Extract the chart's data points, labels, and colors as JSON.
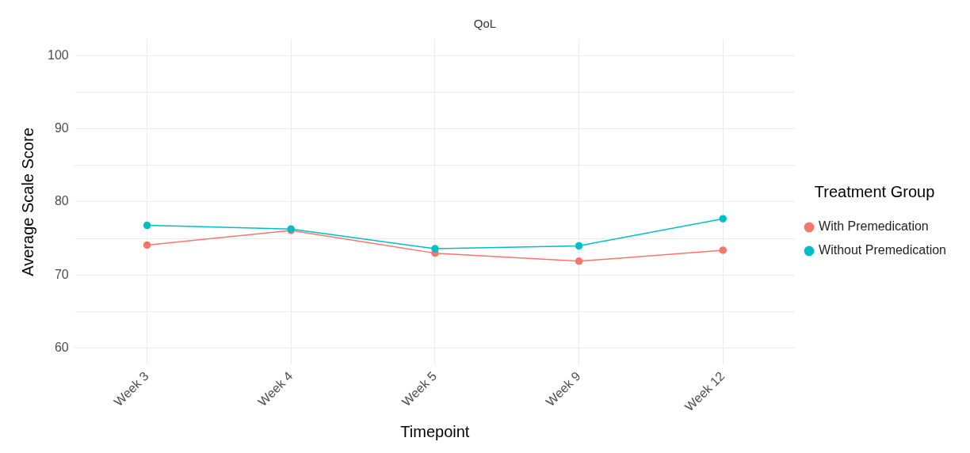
{
  "chart_data": {
    "type": "line",
    "title": "QoL",
    "xlabel": "Timepoint",
    "ylabel": "Average Scale Score",
    "legend_title": "Treatment Group",
    "categories": [
      "Week 3",
      "Week 4",
      "Week 5",
      "Week 9",
      "Week 12"
    ],
    "series": [
      {
        "name": "With Premedication",
        "color": "#f8766d",
        "values": [
          74.1,
          76.1,
          73.0,
          71.9,
          73.4
        ]
      },
      {
        "name": "Without Premedication",
        "color": "#00bfc4",
        "values": [
          76.8,
          76.3,
          73.6,
          74.0,
          77.7
        ]
      }
    ],
    "ylim": [
      57.8,
      102.2
    ],
    "yticks": [
      60,
      {
        "value": 65,
        "label": null
      },
      70,
      {
        "value": 75,
        "label": null
      },
      80,
      {
        "value": 85,
        "label": null
      },
      90,
      {
        "value": 95,
        "label": null
      },
      100
    ],
    "grid": true,
    "legend": "right",
    "marker": "circle",
    "line_style": "solid"
  }
}
